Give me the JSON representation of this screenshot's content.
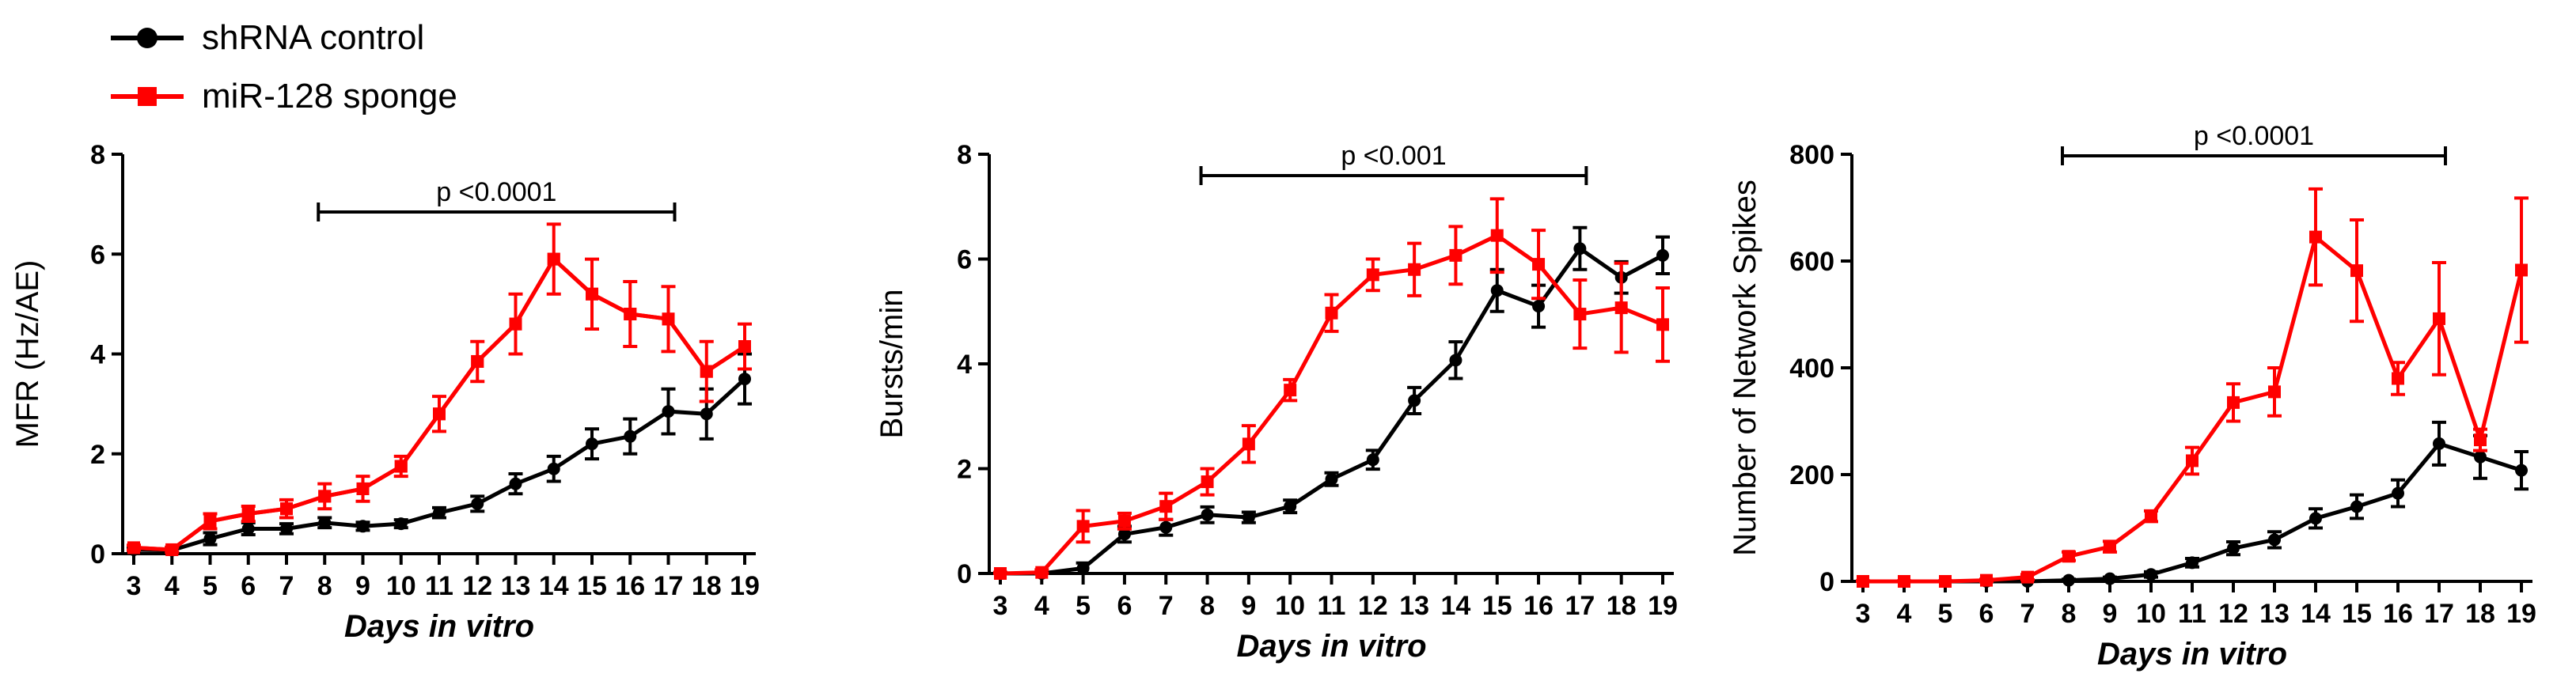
{
  "legend": [
    {
      "label": "shRNA control",
      "color": "#000000",
      "marker": "circle"
    },
    {
      "label": "miR-128 sponge",
      "color": "#ff0000",
      "marker": "square"
    }
  ],
  "chart_data": [
    {
      "type": "line",
      "ylabel": "MFR (Hz/AE)",
      "xlabel": "Days in vitro",
      "x": [
        3,
        4,
        5,
        6,
        7,
        8,
        9,
        10,
        11,
        12,
        13,
        14,
        15,
        16,
        17,
        18,
        19
      ],
      "ylim": [
        0,
        8
      ],
      "yticks": [
        0,
        2,
        4,
        6,
        8
      ],
      "annotation": {
        "text": "p <0.0001",
        "x_start": 8,
        "x_end": 17
      },
      "series": [
        {
          "name": "shRNA control",
          "color": "#000000",
          "values": [
            0.08,
            0.07,
            0.3,
            0.5,
            0.5,
            0.62,
            0.55,
            0.6,
            0.82,
            1.0,
            1.4,
            1.7,
            2.2,
            2.35,
            2.85,
            2.8,
            3.5
          ],
          "errors": [
            0.05,
            0.05,
            0.12,
            0.12,
            0.1,
            0.1,
            0.08,
            0.08,
            0.1,
            0.15,
            0.2,
            0.25,
            0.3,
            0.35,
            0.45,
            0.5,
            0.5
          ]
        },
        {
          "name": "miR-128 sponge",
          "color": "#ff0000",
          "values": [
            0.12,
            0.08,
            0.65,
            0.8,
            0.9,
            1.15,
            1.3,
            1.75,
            2.8,
            3.85,
            4.6,
            5.9,
            5.2,
            4.8,
            4.7,
            3.65,
            4.15
          ]
        },
        {
          "name": "miR-128 sponge",
          "color": "#ff0000",
          "values": [
            0.12,
            0.08,
            0.65,
            0.8,
            0.9,
            1.15,
            1.3,
            1.75,
            2.8,
            3.85,
            4.6,
            5.9,
            5.2,
            4.8,
            4.7,
            3.65,
            4.15
          ],
          "errors": [
            0.05,
            0.05,
            0.15,
            0.15,
            0.18,
            0.25,
            0.25,
            0.2,
            0.35,
            0.4,
            0.6,
            0.7,
            0.7,
            0.65,
            0.65,
            0.6,
            0.45
          ]
        }
      ]
    },
    {
      "type": "line",
      "ylabel": "Bursts/min",
      "xlabel": "Days in vitro",
      "x": [
        3,
        4,
        5,
        6,
        7,
        8,
        9,
        10,
        11,
        12,
        13,
        14,
        15,
        16,
        17,
        18,
        19
      ],
      "ylim": [
        0,
        8
      ],
      "yticks": [
        0,
        2,
        4,
        6,
        8
      ],
      "annotation": {
        "text": "p <0.001",
        "x_start": 8,
        "x_end": 17
      },
      "series": [
        {
          "name": "shRNA control",
          "color": "#000000",
          "values": [
            0.0,
            0.0,
            0.1,
            0.75,
            0.88,
            1.12,
            1.07,
            1.28,
            1.8,
            2.17,
            3.3,
            4.07,
            5.4,
            5.1,
            6.2,
            5.65,
            6.07
          ],
          "errors": [
            0.02,
            0.02,
            0.1,
            0.15,
            0.15,
            0.15,
            0.1,
            0.12,
            0.12,
            0.18,
            0.25,
            0.35,
            0.4,
            0.4,
            0.4,
            0.3,
            0.35
          ]
        },
        {
          "name": "miR-128 sponge",
          "color": "#ff0000",
          "values": [
            0.0,
            0.02,
            0.9,
            1.0,
            1.28,
            1.75,
            2.47,
            3.5,
            4.97,
            5.7,
            5.8,
            6.07,
            6.45,
            5.9,
            4.95,
            5.07,
            4.75
          ],
          "errors": [
            0.02,
            0.05,
            0.3,
            0.15,
            0.25,
            0.25,
            0.35,
            0.2,
            0.35,
            0.3,
            0.5,
            0.55,
            0.7,
            0.65,
            0.65,
            0.85,
            0.7
          ]
        }
      ]
    },
    {
      "type": "line",
      "ylabel": "Number of Network Spikes",
      "xlabel": "Days in vitro",
      "x": [
        3,
        4,
        5,
        6,
        7,
        8,
        9,
        10,
        11,
        12,
        13,
        14,
        15,
        16,
        17,
        18,
        19
      ],
      "ylim": [
        0,
        800
      ],
      "yticks": [
        0,
        200,
        400,
        600,
        800
      ],
      "annotation": {
        "text": "p <0.0001",
        "x_start": 8,
        "x_end": 17
      },
      "series": [
        {
          "name": "shRNA control",
          "color": "#000000",
          "values": [
            0,
            0,
            0,
            0,
            0,
            2,
            5,
            13,
            35,
            62,
            78,
            118,
            140,
            165,
            258,
            233,
            208
          ],
          "errors": [
            1,
            1,
            1,
            1,
            1,
            2,
            3,
            5,
            8,
            12,
            15,
            18,
            22,
            25,
            40,
            40,
            35
          ]
        },
        {
          "name": "miR-128 sponge",
          "color": "#ff0000",
          "values": [
            0,
            0,
            0,
            2,
            8,
            47,
            65,
            122,
            226,
            335,
            355,
            645,
            582,
            380,
            492,
            265,
            583
          ],
          "errors": [
            1,
            1,
            1,
            2,
            5,
            8,
            10,
            10,
            25,
            35,
            45,
            90,
            95,
            30,
            105,
            20,
            135
          ]
        }
      ]
    }
  ]
}
